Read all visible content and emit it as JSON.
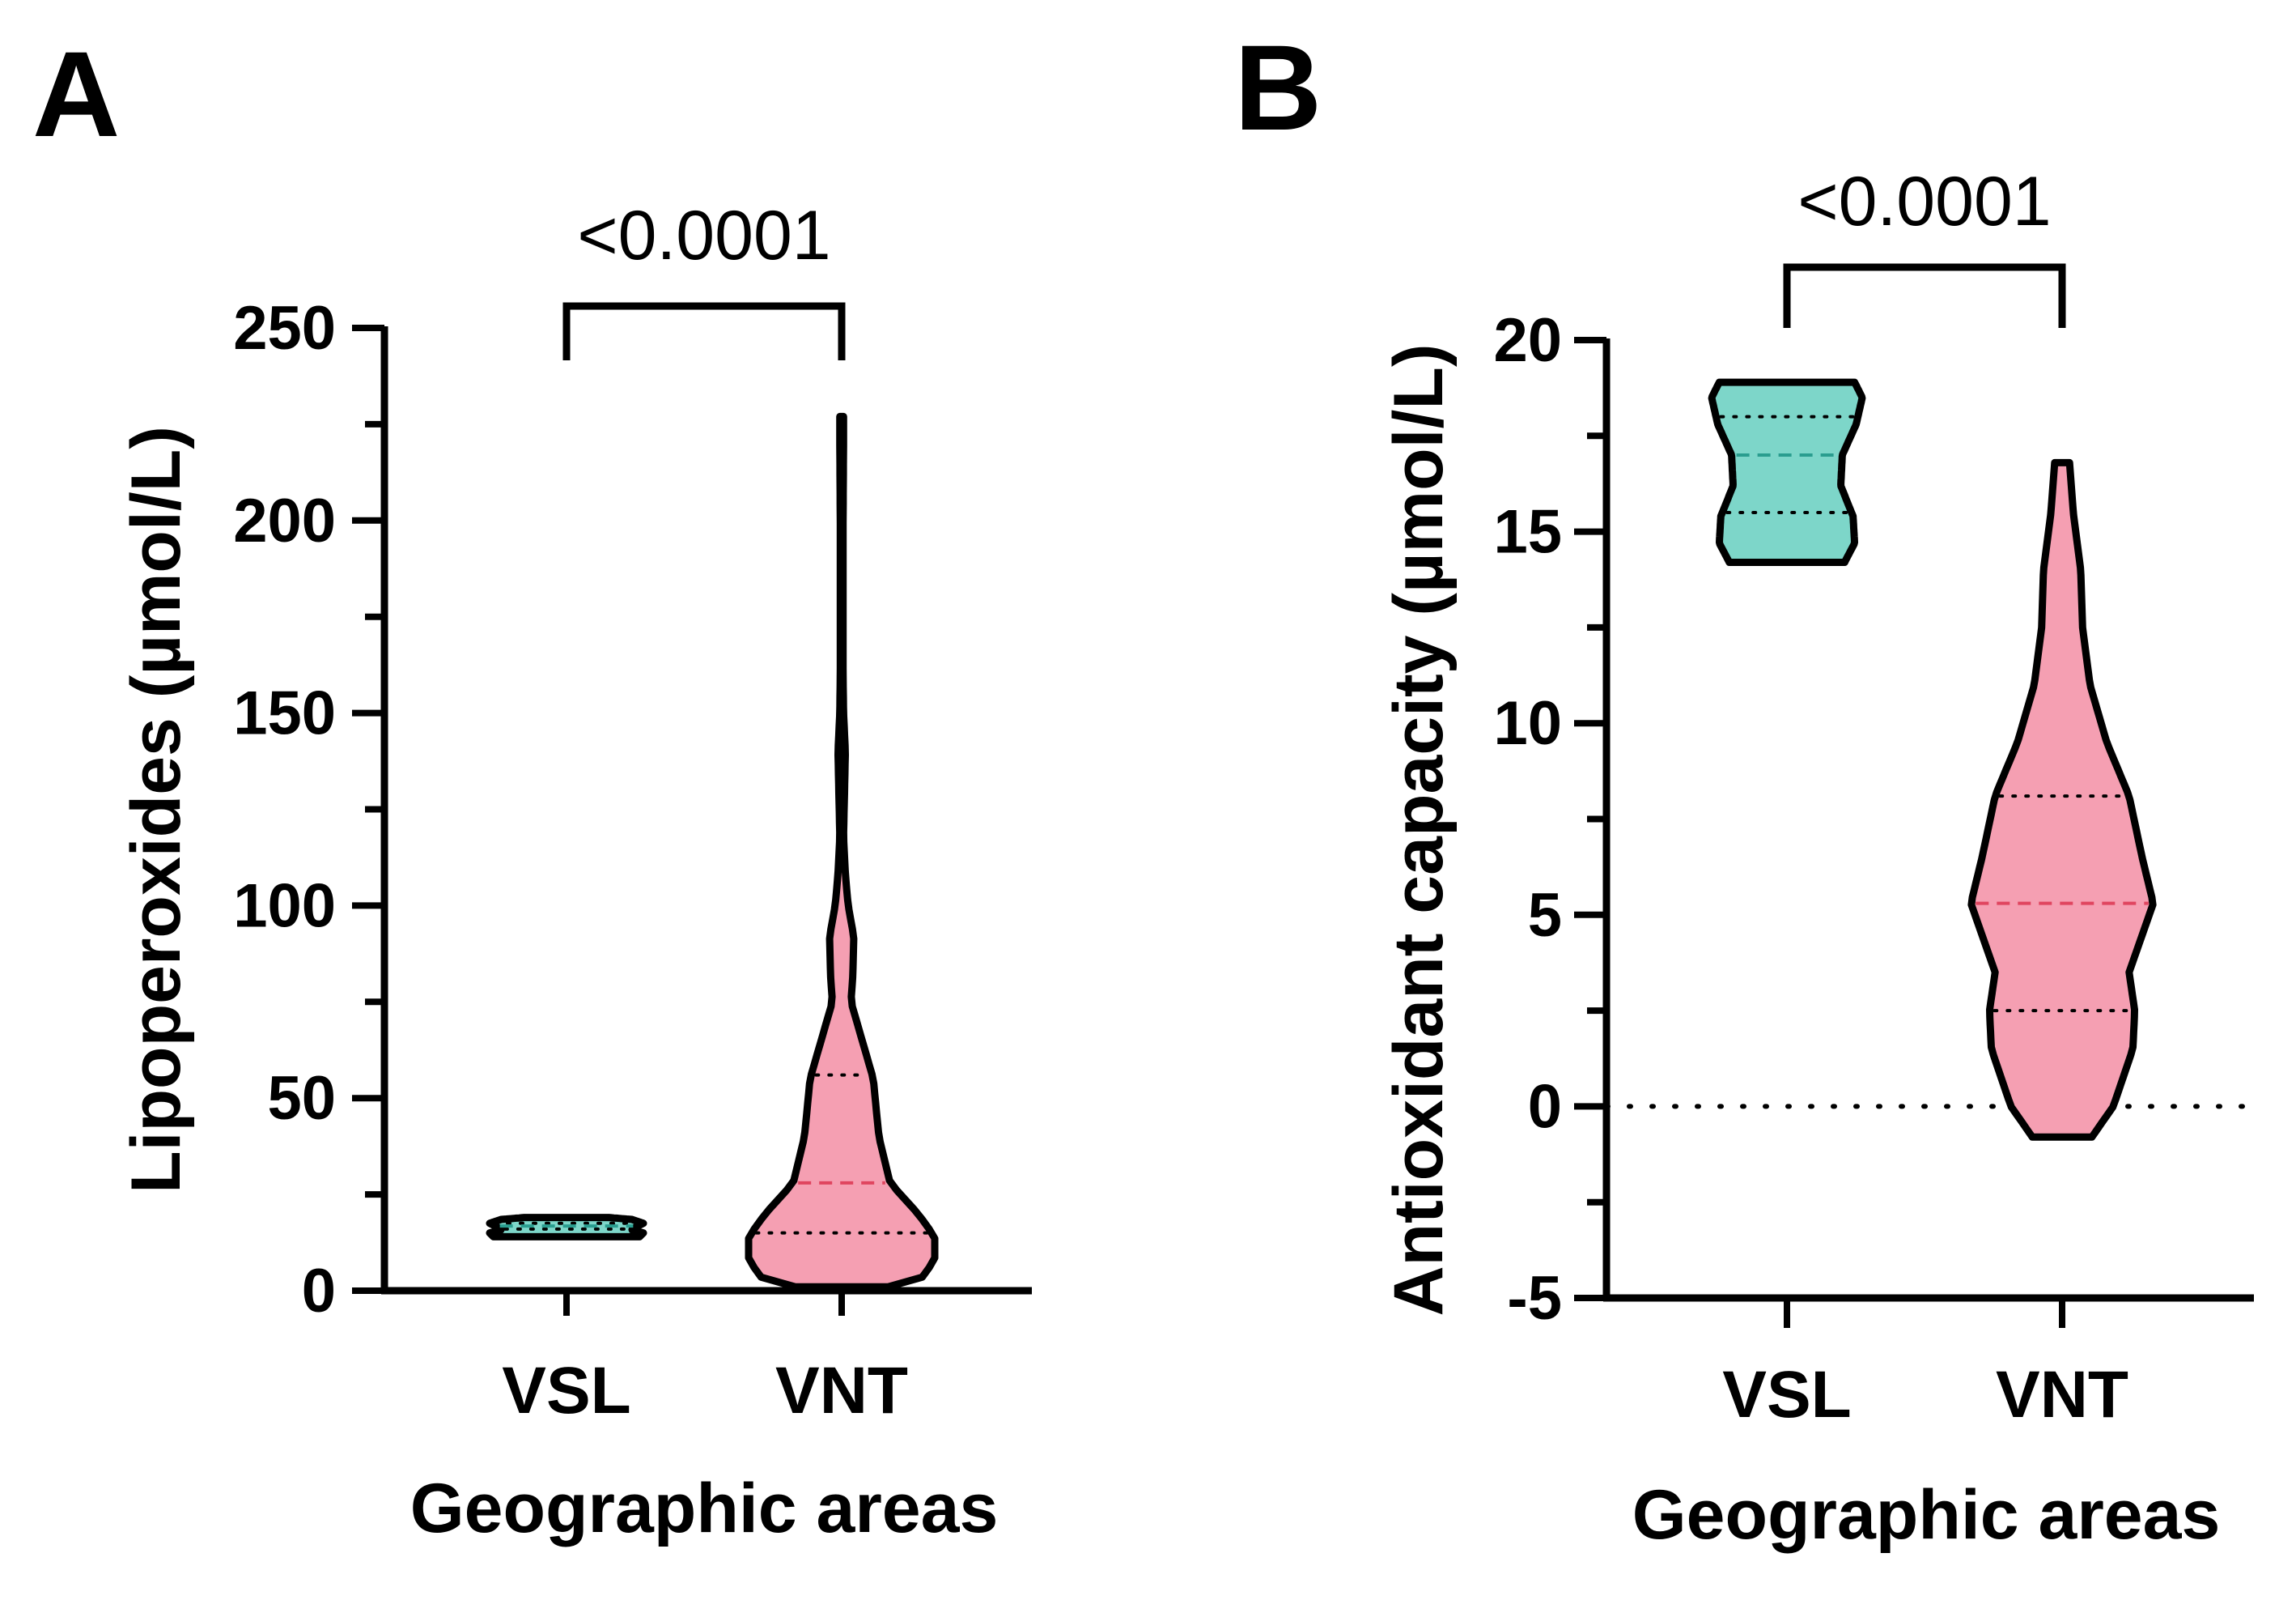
{
  "figure": {
    "panels": [
      "A",
      "B"
    ]
  },
  "chart_data": [
    {
      "panel": "A",
      "type": "violin",
      "ylabel": "Lipoperoxides (µmol/L)",
      "xlabel": "Geographic areas",
      "ylim": [
        0,
        250
      ],
      "yticks": [
        0,
        50,
        100,
        150,
        200,
        250
      ],
      "ytick_labels": [
        "0",
        "50",
        "100",
        "150",
        "200",
        "250"
      ],
      "categories": [
        "VSL",
        "VNT"
      ],
      "p_value": "<0.0001",
      "series": [
        {
          "name": "VSL",
          "fill": "#7dd6c9",
          "median_color": "#2a9d8f",
          "min": 14,
          "max": 19,
          "q1": 16,
          "median": 16.8,
          "q3": 17.5,
          "density": [
            [
              14,
              0.95
            ],
            [
              15,
              1.0
            ],
            [
              15.8,
              0.85
            ],
            [
              16.5,
              0.9
            ],
            [
              17.5,
              1.0
            ],
            [
              18.5,
              0.85
            ],
            [
              19,
              0.55
            ]
          ]
        },
        {
          "name": "VNT",
          "fill": "#f59fb2",
          "median_color": "#e0455f",
          "min": 1,
          "max": 227,
          "q1": 15,
          "median": 28,
          "q3": 56,
          "density": [
            [
              1,
              0.5
            ],
            [
              3,
              0.85
            ],
            [
              8,
              1.0
            ],
            [
              14,
              1.0
            ],
            [
              20,
              0.82
            ],
            [
              28,
              0.52
            ],
            [
              40,
              0.4
            ],
            [
              55,
              0.34
            ],
            [
              65,
              0.22
            ],
            [
              75,
              0.1
            ],
            [
              82,
              0.12
            ],
            [
              92,
              0.13
            ],
            [
              100,
              0.07
            ],
            [
              108,
              0.04
            ],
            [
              118,
              0.02
            ],
            [
              140,
              0.04
            ],
            [
              150,
              0.02
            ],
            [
              160,
              0.015
            ],
            [
              200,
              0.015
            ],
            [
              220,
              0.02
            ],
            [
              227,
              0.02
            ]
          ]
        }
      ]
    },
    {
      "panel": "B",
      "type": "violin",
      "ylabel": "Antioxidant capacity (µmol/L)",
      "xlabel": "Geographic areas",
      "ylim": [
        -5,
        20
      ],
      "yticks": [
        -5,
        0,
        5,
        10,
        15,
        20
      ],
      "ytick_labels": [
        "-5",
        "0",
        "5",
        "10",
        "15",
        "20"
      ],
      "reference_line": 0,
      "categories": [
        "VSL",
        "VNT"
      ],
      "p_value": "<0.0001",
      "series": [
        {
          "name": "VSL",
          "fill": "#7dd6c9",
          "median_color": "#2a9d8f",
          "min": 14.2,
          "max": 18.9,
          "q1": 15.5,
          "median": 17.0,
          "q3": 18.0,
          "density": [
            [
              14.2,
              0.75
            ],
            [
              14.7,
              0.88
            ],
            [
              15.4,
              0.86
            ],
            [
              16.2,
              0.7
            ],
            [
              17.0,
              0.72
            ],
            [
              17.8,
              0.9
            ],
            [
              18.5,
              0.98
            ],
            [
              18.9,
              0.88
            ]
          ]
        },
        {
          "name": "VNT",
          "fill": "#f59fb2",
          "median_color": "#e0455f",
          "min": -0.8,
          "max": 16.8,
          "q1": 2.5,
          "median": 5.3,
          "q3": 8.1,
          "density": [
            [
              -0.8,
              0.32
            ],
            [
              0,
              0.55
            ],
            [
              1.5,
              0.76
            ],
            [
              2.5,
              0.78
            ],
            [
              3.5,
              0.72
            ],
            [
              5.3,
              0.98
            ],
            [
              6.5,
              0.86
            ],
            [
              8.1,
              0.72
            ],
            [
              9.5,
              0.48
            ],
            [
              11,
              0.3
            ],
            [
              12.5,
              0.22
            ],
            [
              14,
              0.2
            ],
            [
              15.5,
              0.12
            ],
            [
              16.8,
              0.08
            ]
          ]
        }
      ]
    }
  ]
}
